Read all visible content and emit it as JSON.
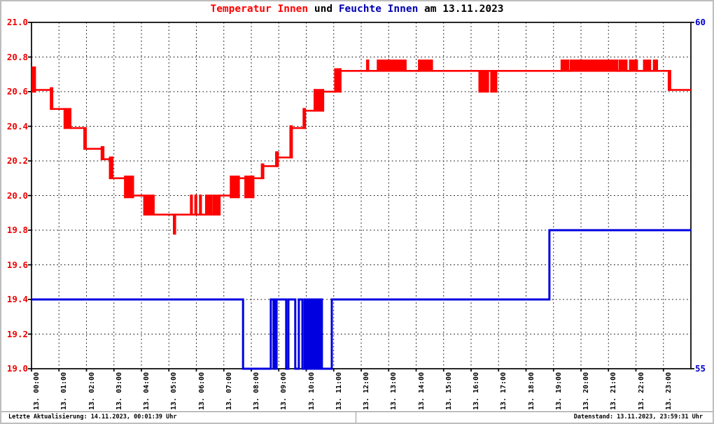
{
  "header": {
    "title_parts": [
      {
        "text": "Temperatur Innen",
        "color": "#ff0000"
      },
      {
        "text": " und ",
        "color": "#000000"
      },
      {
        "text": "Feuchte Innen",
        "color": "#0000b4"
      },
      {
        "text": " am 13.11.2023",
        "color": "#000000"
      }
    ]
  },
  "footer": {
    "left": "Letzte Aktualisierung: 14.11.2023, 00:01:39 Uhr",
    "right": "Datenstand: 13.11.2023, 23:59:31 Uhr"
  },
  "chart_data": {
    "type": "line",
    "title": "Temperatur Innen und Feuchte Innen am 13.11.2023",
    "grid": true,
    "x_axis": {
      "min_hour": 0,
      "max_hour": 24,
      "tick_hours": [
        0,
        1,
        2,
        3,
        4,
        5,
        6,
        7,
        8,
        9,
        10,
        11,
        12,
        13,
        14,
        15,
        16,
        17,
        18,
        19,
        20,
        21,
        22,
        23
      ],
      "tick_labels": [
        "13. 00:00",
        "13. 01:00",
        "13. 02:00",
        "13. 03:00",
        "13. 04:00",
        "13. 05:00",
        "13. 06:00",
        "13. 07:00",
        "13. 08:00",
        "13. 09:00",
        "13. 10:00",
        "13. 11:00",
        "13. 12:00",
        "13. 13:00",
        "13. 14:00",
        "13. 15:00",
        "13. 16:00",
        "13. 17:00",
        "13. 18:00",
        "13. 19:00",
        "13. 20:00",
        "13. 21:00",
        "13. 22:00",
        "13. 23:00"
      ]
    },
    "y_left": {
      "min": 19.0,
      "max": 21.0,
      "step": 0.2,
      "color": "#ee0000",
      "tick_labels": [
        "21.0",
        "20.8",
        "20.6",
        "20.4",
        "20.2",
        "20.0",
        "19.8",
        "19.6",
        "19.4",
        "19.2",
        "19.0"
      ]
    },
    "y_right": {
      "min": 55,
      "max": 60,
      "color": "#0000cc",
      "ticks": [
        {
          "v": 60,
          "label": "60"
        },
        {
          "v": 55,
          "label": "55"
        }
      ]
    },
    "series": [
      {
        "name": "Feuchte Innen",
        "axis": "right",
        "unit": "%",
        "color": "#0000e0",
        "thickness": 3,
        "segments": [
          [
            0.0,
            7.7,
            56,
            56
          ],
          [
            7.7,
            8.71,
            55,
            55
          ],
          [
            8.71,
            8.81,
            56,
            56
          ],
          [
            8.81,
            8.92,
            55,
            56
          ],
          [
            8.92,
            9.27,
            56,
            56
          ],
          [
            9.27,
            9.35,
            55,
            55
          ],
          [
            9.35,
            9.6,
            56,
            56
          ],
          [
            9.6,
            9.73,
            55,
            55
          ],
          [
            9.73,
            9.86,
            56,
            56
          ],
          [
            9.86,
            9.94,
            55,
            55
          ],
          [
            9.94,
            9.99,
            56,
            56
          ],
          [
            9.99,
            10.57,
            55,
            56
          ],
          [
            10.57,
            10.93,
            55,
            55
          ],
          [
            10.93,
            18.85,
            56,
            56
          ],
          [
            18.85,
            24.0,
            57,
            57
          ]
        ]
      },
      {
        "name": "Temperatur Innen",
        "axis": "left",
        "unit": "°C",
        "color": "#ff0000",
        "thickness": 2.6,
        "segments": [
          [
            0.0,
            0.13,
            20.6,
            20.74
          ],
          [
            0.13,
            0.7,
            20.61,
            20.61
          ],
          [
            0.7,
            0.76,
            20.5,
            20.62
          ],
          [
            0.76,
            1.2,
            20.5,
            20.5
          ],
          [
            1.2,
            1.42,
            20.39,
            20.5
          ],
          [
            1.42,
            1.92,
            20.39,
            20.39
          ],
          [
            1.92,
            1.98,
            20.27,
            20.39
          ],
          [
            1.98,
            2.55,
            20.27,
            20.27
          ],
          [
            2.55,
            2.62,
            20.21,
            20.28
          ],
          [
            2.62,
            2.85,
            20.21,
            20.21
          ],
          [
            2.85,
            2.95,
            20.1,
            20.22
          ],
          [
            2.95,
            3.4,
            20.1,
            20.1
          ],
          [
            3.4,
            3.7,
            19.99,
            20.11
          ],
          [
            3.7,
            4.1,
            20.0,
            20.0
          ],
          [
            4.1,
            4.45,
            19.89,
            20.0
          ],
          [
            4.45,
            5.18,
            19.89,
            19.89
          ],
          [
            5.18,
            5.23,
            19.78,
            19.89
          ],
          [
            5.23,
            5.8,
            19.89,
            19.89
          ],
          [
            5.8,
            5.84,
            19.89,
            20.0
          ],
          [
            5.84,
            5.96,
            19.89,
            19.89
          ],
          [
            5.96,
            6.0,
            19.89,
            20.0
          ],
          [
            6.0,
            6.13,
            19.89,
            19.89
          ],
          [
            6.13,
            6.17,
            19.89,
            20.0
          ],
          [
            6.17,
            6.35,
            19.89,
            19.89
          ],
          [
            6.35,
            6.55,
            19.89,
            20.0
          ],
          [
            6.55,
            6.62,
            19.89,
            19.89
          ],
          [
            6.62,
            6.85,
            19.89,
            20.0
          ],
          [
            6.85,
            7.25,
            20.0,
            20.0
          ],
          [
            7.25,
            7.55,
            19.99,
            20.11
          ],
          [
            7.55,
            7.78,
            20.1,
            20.1
          ],
          [
            7.78,
            8.08,
            19.99,
            20.11
          ],
          [
            8.08,
            8.38,
            20.1,
            20.1
          ],
          [
            8.38,
            8.44,
            20.1,
            20.18
          ],
          [
            8.44,
            8.9,
            20.17,
            20.17
          ],
          [
            8.9,
            8.97,
            20.17,
            20.25
          ],
          [
            8.97,
            9.42,
            20.22,
            20.22
          ],
          [
            9.42,
            9.48,
            20.22,
            20.4
          ],
          [
            9.48,
            9.9,
            20.39,
            20.39
          ],
          [
            9.9,
            9.96,
            20.39,
            20.5
          ],
          [
            9.96,
            10.3,
            20.49,
            20.49
          ],
          [
            10.3,
            10.62,
            20.49,
            20.61
          ],
          [
            10.62,
            11.05,
            20.6,
            20.6
          ],
          [
            11.05,
            11.25,
            20.6,
            20.73
          ],
          [
            11.25,
            12.21,
            20.72,
            20.72
          ],
          [
            12.21,
            12.26,
            20.72,
            20.78
          ],
          [
            12.26,
            12.6,
            20.72,
            20.72
          ],
          [
            12.6,
            13.62,
            20.72,
            20.78
          ],
          [
            13.62,
            14.1,
            20.72,
            20.72
          ],
          [
            14.1,
            14.58,
            20.72,
            20.78
          ],
          [
            14.58,
            16.3,
            20.72,
            20.72
          ],
          [
            16.3,
            16.62,
            20.6,
            20.72
          ],
          [
            16.62,
            16.73,
            20.72,
            20.72
          ],
          [
            16.73,
            16.92,
            20.6,
            20.72
          ],
          [
            16.92,
            19.29,
            20.72,
            20.72
          ],
          [
            19.29,
            19.54,
            20.72,
            20.78
          ],
          [
            19.54,
            19.62,
            20.72,
            20.72
          ],
          [
            19.62,
            21.32,
            20.72,
            20.78
          ],
          [
            21.32,
            21.4,
            20.72,
            20.72
          ],
          [
            21.4,
            21.66,
            20.72,
            20.78
          ],
          [
            21.66,
            21.78,
            20.72,
            20.72
          ],
          [
            21.78,
            22.04,
            20.72,
            20.78
          ],
          [
            22.04,
            22.29,
            20.72,
            20.72
          ],
          [
            22.29,
            22.52,
            20.72,
            20.78
          ],
          [
            22.52,
            22.65,
            20.72,
            20.72
          ],
          [
            22.65,
            22.77,
            20.72,
            20.78
          ],
          [
            22.77,
            23.19,
            20.72,
            20.72
          ],
          [
            23.19,
            23.25,
            20.61,
            20.72
          ],
          [
            23.25,
            24.0,
            20.61,
            20.61
          ]
        ]
      }
    ]
  }
}
